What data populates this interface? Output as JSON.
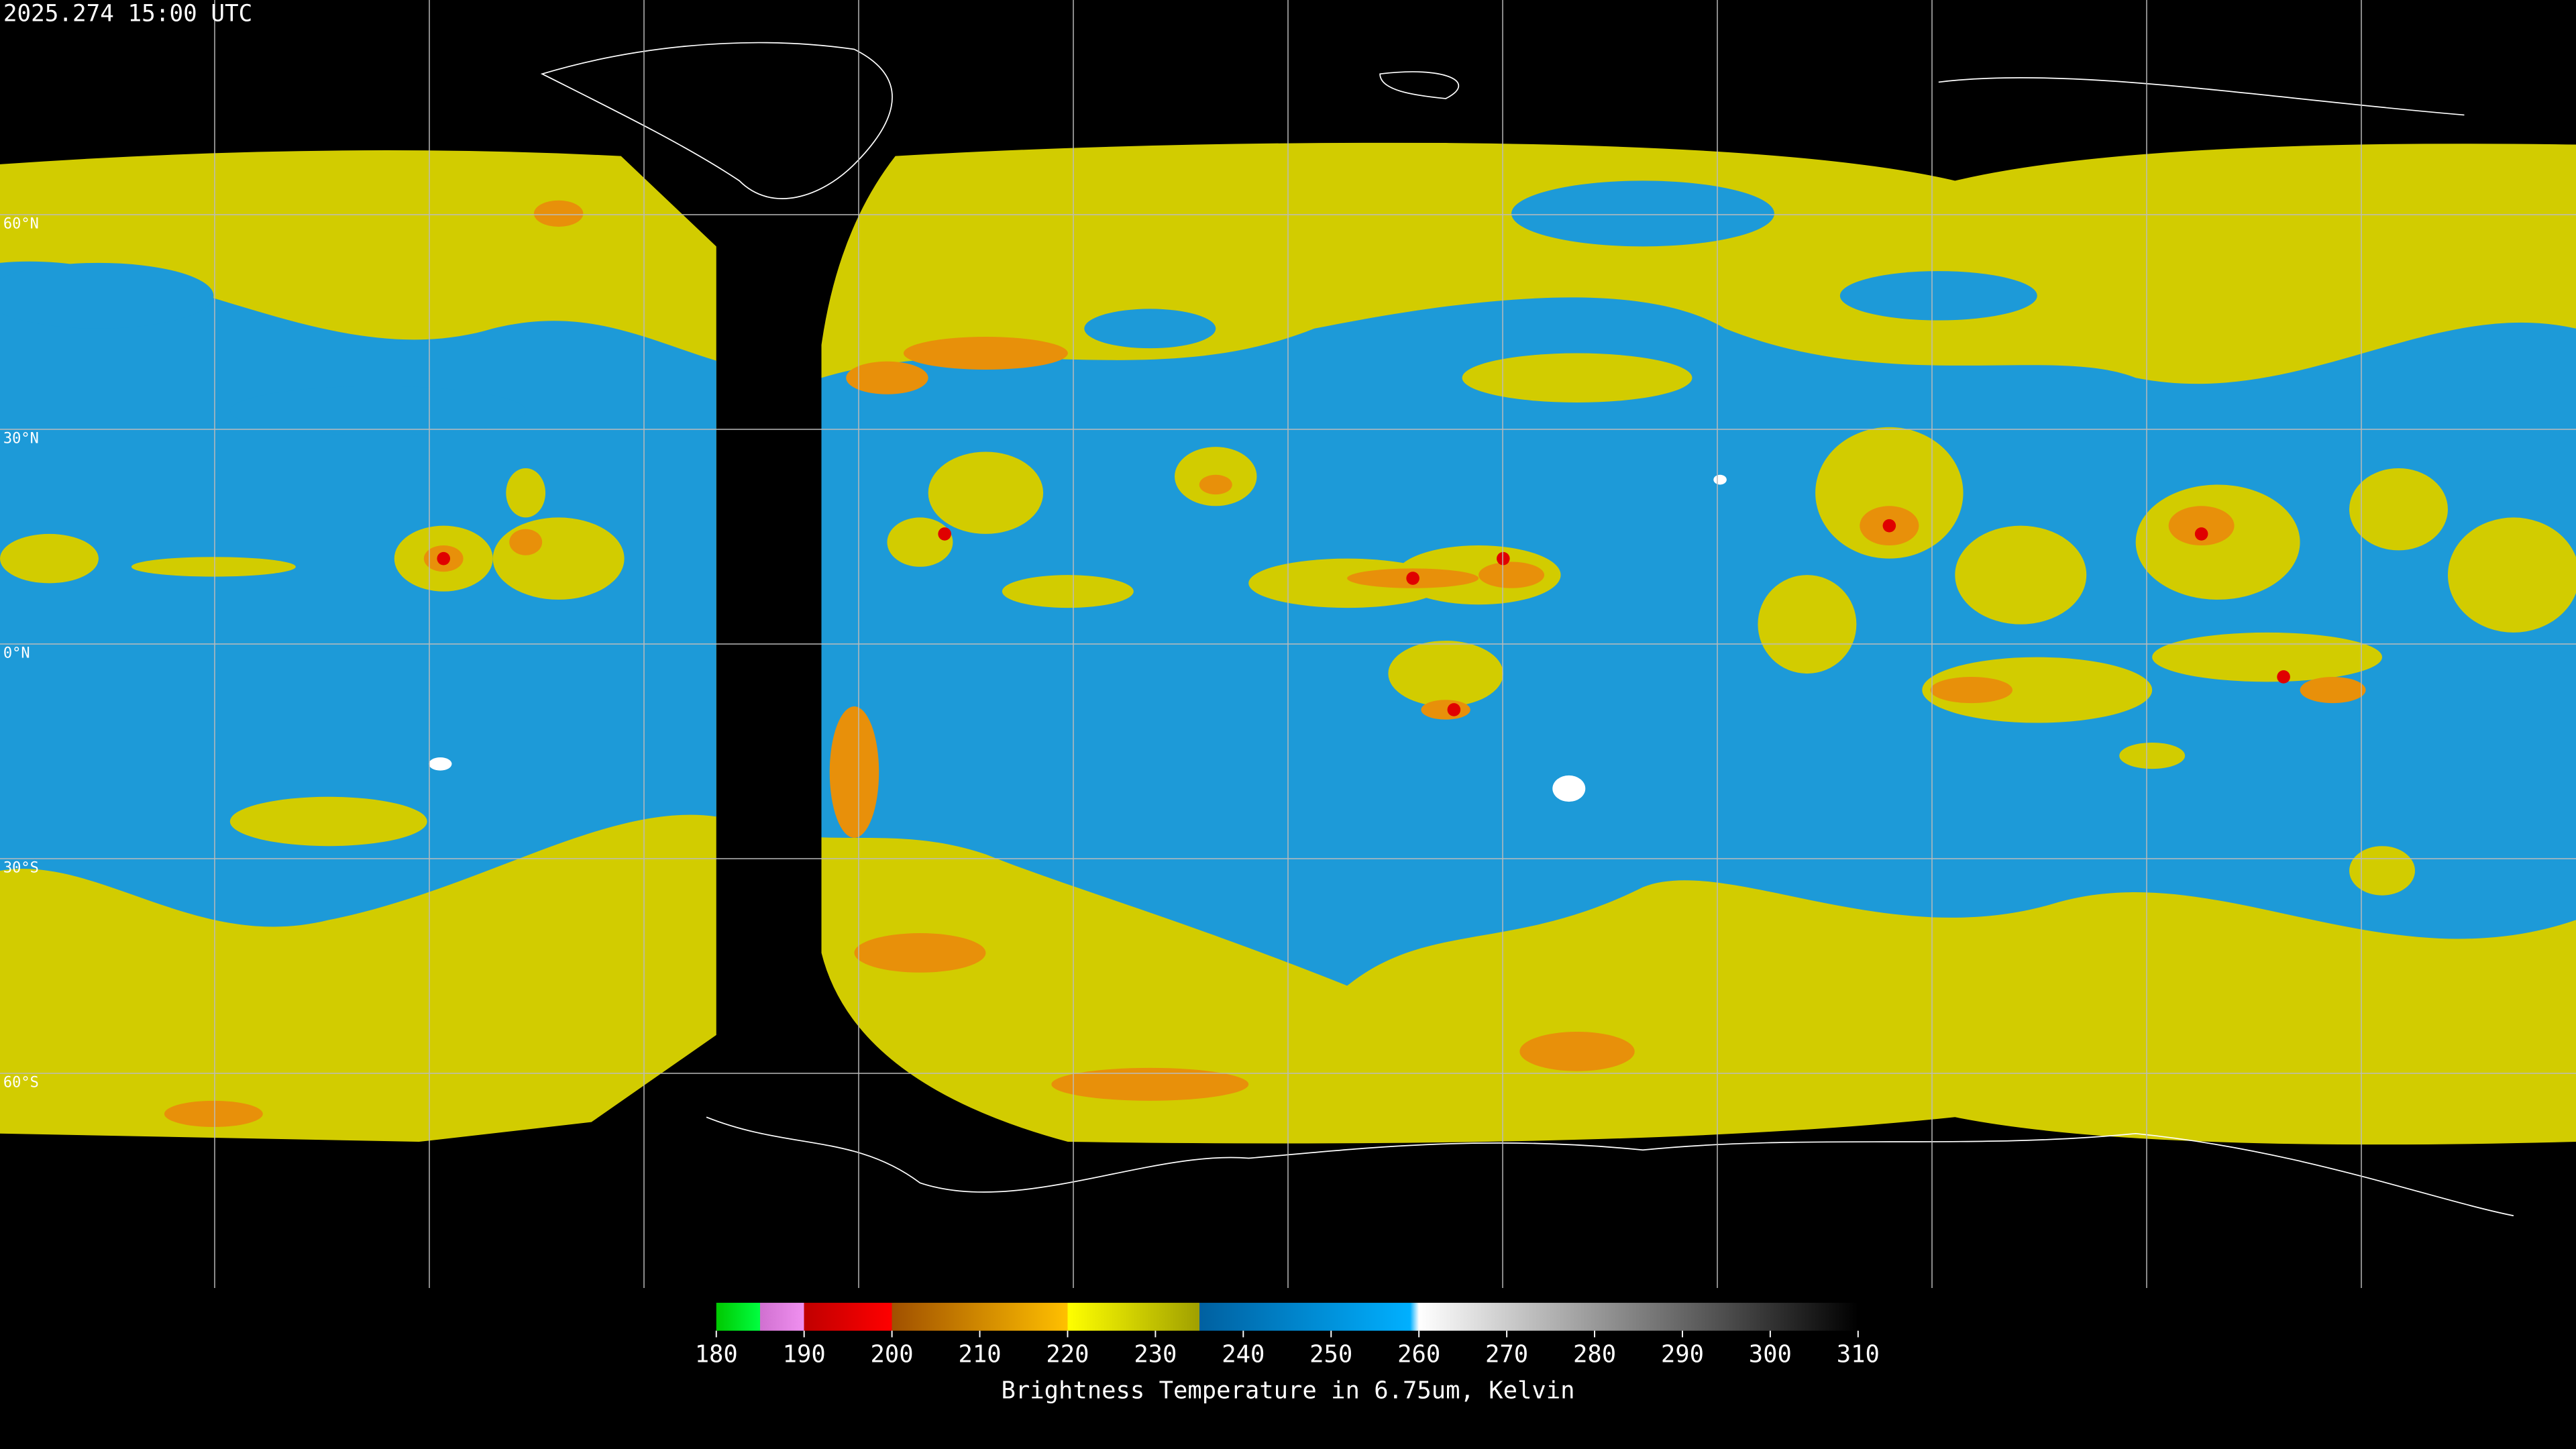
{
  "header": {
    "timestamp": "2025.274 15:00 UTC"
  },
  "map": {
    "lat_labels": [
      "60°N",
      "30°N",
      "0°N",
      "30°S",
      "60°S"
    ]
  },
  "colorbar": {
    "range": [
      180,
      310
    ],
    "ticks": [
      180,
      190,
      200,
      210,
      220,
      230,
      240,
      250,
      260,
      270,
      280,
      290,
      300,
      310
    ],
    "stops": [
      {
        "value": 180,
        "color": "#00c800"
      },
      {
        "value": 185,
        "color": "#00ff40"
      },
      {
        "value": 185,
        "color": "#d070d0"
      },
      {
        "value": 190,
        "color": "#f090f0"
      },
      {
        "value": 190,
        "color": "#c00000"
      },
      {
        "value": 200,
        "color": "#ff0000"
      },
      {
        "value": 200,
        "color": "#a05000"
      },
      {
        "value": 220,
        "color": "#ffc000"
      },
      {
        "value": 220,
        "color": "#ffff00"
      },
      {
        "value": 235,
        "color": "#a0a000"
      },
      {
        "value": 235,
        "color": "#0060a0"
      },
      {
        "value": 259,
        "color": "#00b0ff"
      },
      {
        "value": 260,
        "color": "#ffffff"
      },
      {
        "value": 310,
        "color": "#000000"
      }
    ],
    "label": "Brightness Temperature in 6.75um, Kelvin"
  }
}
